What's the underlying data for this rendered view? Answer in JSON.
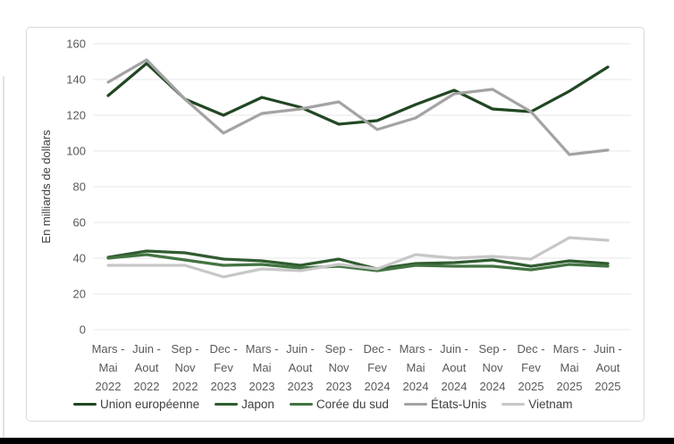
{
  "page": {
    "background": "#ffffff",
    "bottom_bar_color": "#000000"
  },
  "colors": {
    "card_border": "#d9d9d9",
    "gridline": "#e7e7e7",
    "tick_text": "#595959",
    "axis_title_text": "#404040",
    "legend_text": "#3f3f3f"
  },
  "chart_data": {
    "type": "line",
    "title": "",
    "xlabel": "",
    "ylabel": "En milliards de dollars",
    "ylim": [
      0,
      160
    ],
    "ytick_interval": 20,
    "yticks": [
      160,
      140,
      120,
      100,
      80,
      60,
      40,
      20,
      0
    ],
    "grid": true,
    "legend_position": "bottom",
    "categories": [
      [
        "Mars -",
        "Mai",
        "2022"
      ],
      [
        "Juin -",
        "Aout",
        "2022"
      ],
      [
        "Sep -",
        "Nov",
        "2022"
      ],
      [
        "Dec -",
        "Fev",
        "2023"
      ],
      [
        "Mars -",
        "Mai",
        "2023"
      ],
      [
        "Juin -",
        "Aout",
        "2023"
      ],
      [
        "Sep -",
        "Nov",
        "2023"
      ],
      [
        "Dec -",
        "Fev",
        "2024"
      ],
      [
        "Mars -",
        "Mai",
        "2024"
      ],
      [
        "Juin -",
        "Aout",
        "2024"
      ],
      [
        "Sep -",
        "Nov",
        "2024"
      ],
      [
        "Dec -",
        "Fev",
        "2025"
      ],
      [
        "Mars -",
        "Mai",
        "2025"
      ],
      [
        "Juin -",
        "Aout",
        "2025"
      ]
    ],
    "series": [
      {
        "name": "Union européenne",
        "color": "#214722",
        "values": [
          131,
          149,
          129,
          120,
          130,
          124.5,
          115,
          117,
          126,
          134,
          123.5,
          122,
          133.5,
          147
        ]
      },
      {
        "name": "Japon",
        "color": "#305c30",
        "values": [
          40.5,
          44,
          43,
          39.5,
          38.5,
          36,
          39.5,
          34,
          37,
          37.5,
          39,
          35.5,
          38.5,
          37
        ]
      },
      {
        "name": "Corée du sud",
        "color": "#427442",
        "values": [
          40,
          42,
          39,
          36,
          36.5,
          34.5,
          35.5,
          33,
          36,
          35.5,
          35.5,
          33.5,
          36.5,
          35.5
        ]
      },
      {
        "name": "États-Unis",
        "color": "#a3a3a3",
        "values": [
          138.5,
          151,
          129,
          110,
          121,
          123.5,
          127.5,
          112,
          118.5,
          132,
          134.5,
          122,
          98,
          100.5
        ]
      },
      {
        "name": "Vietnam",
        "color": "#c7c7c7",
        "values": [
          36,
          36,
          36,
          29.5,
          34,
          33,
          36.5,
          34,
          42,
          40,
          41,
          39.5,
          51.5,
          50
        ]
      }
    ]
  }
}
